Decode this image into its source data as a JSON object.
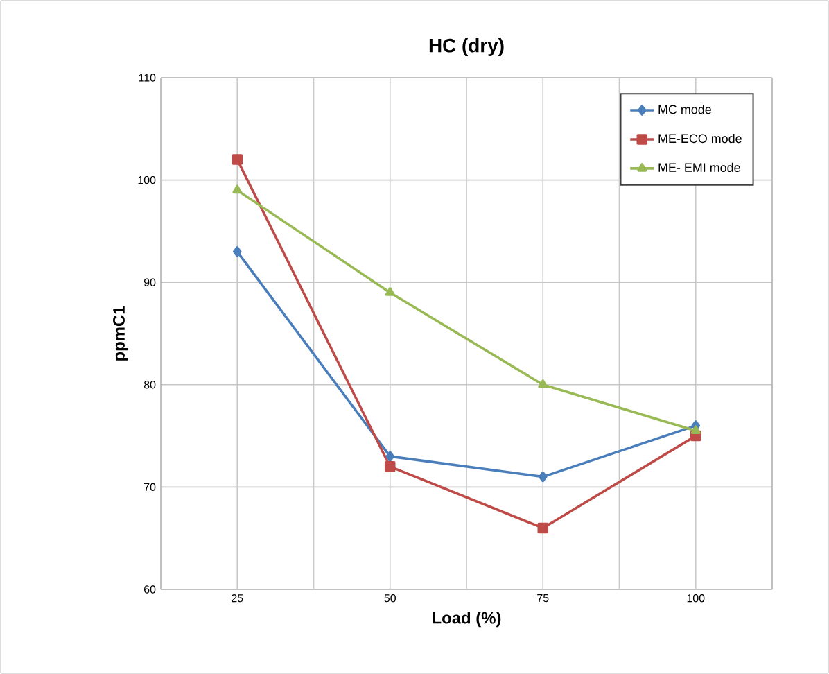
{
  "chart_data": {
    "type": "line",
    "title": "HC (dry)",
    "xlabel": "Load (%)",
    "ylabel": "ppmC1",
    "categories": [
      "25",
      "50",
      "75",
      "100"
    ],
    "series": [
      {
        "name": "MC mode",
        "color": "#4a7ebb",
        "marker": "diamond",
        "values": [
          93,
          73,
          71,
          76
        ]
      },
      {
        "name": "ME-ECO mode",
        "color": "#be4b48",
        "marker": "square",
        "values": [
          102,
          72,
          66,
          75
        ]
      },
      {
        "name": "ME- EMI mode",
        "color": "#98b954",
        "marker": "triangle",
        "values": [
          99,
          89,
          80,
          75.5
        ]
      }
    ],
    "ylim": [
      60,
      110
    ],
    "yticks": [
      60,
      70,
      80,
      90,
      100,
      110
    ],
    "grid": true,
    "legend": "top right",
    "line_style": "solid"
  }
}
